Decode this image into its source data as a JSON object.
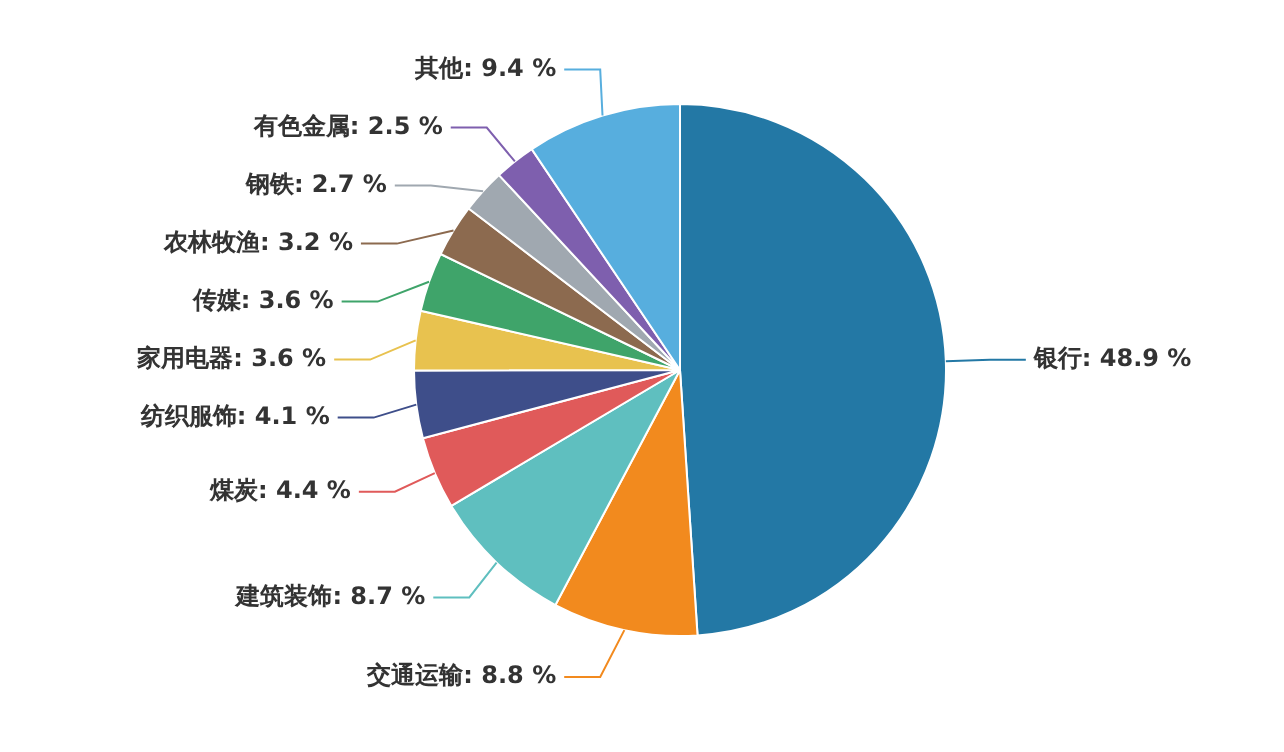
{
  "chart_data": {
    "type": "pie",
    "legend": false,
    "categories": [
      "银行",
      "交通运输",
      "建筑装饰",
      "煤炭",
      "纺织服饰",
      "家用电器",
      "传媒",
      "农林牧渔",
      "钢铁",
      "有色金属",
      "其他"
    ],
    "values": [
      48.9,
      8.8,
      8.7,
      4.4,
      4.1,
      3.6,
      3.6,
      3.2,
      2.7,
      2.5,
      9.4
    ],
    "value_labels": [
      "48.9 %",
      "8.8 %",
      "8.7 %",
      "4.4 %",
      "4.1 %",
      "3.6 %",
      "3.6 %",
      "3.2 %",
      "2.7 %",
      "2.5 %",
      "9.4 %"
    ],
    "colors": [
      "#2378a5",
      "#f28a1e",
      "#5fbfbf",
      "#e05a5a",
      "#3e4e8a",
      "#e8c24f",
      "#3fa46a",
      "#8c6a4f",
      "#a0a8b0",
      "#7e5fae",
      "#57aede"
    ]
  }
}
